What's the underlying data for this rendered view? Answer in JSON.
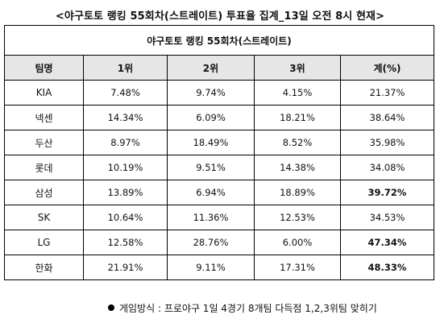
{
  "title": "<야구토토 랭킹 55회차(스트레이트) 투표율 집계_13일 오전 8시 현재>",
  "table": {
    "caption": "야구토토 랭킹 55회차(스트레이트)",
    "headers": [
      "팀명",
      "1위",
      "2위",
      "3위",
      "계(%)"
    ],
    "rows": [
      {
        "team": "KIA",
        "r1": "7.48%",
        "r2": "9.74%",
        "r3": "4.15%",
        "total": "21.37%",
        "total_bold": false
      },
      {
        "team": "넥센",
        "r1": "14.34%",
        "r2": "6.09%",
        "r3": "18.21%",
        "total": "38.64%",
        "total_bold": false
      },
      {
        "team": "두산",
        "r1": "8.97%",
        "r2": "18.49%",
        "r3": "8.52%",
        "total": "35.98%",
        "total_bold": false
      },
      {
        "team": "롯데",
        "r1": "10.19%",
        "r2": "9.51%",
        "r3": "14.38%",
        "total": "34.08%",
        "total_bold": false
      },
      {
        "team": "삼성",
        "r1": "13.89%",
        "r2": "6.94%",
        "r3": "18.89%",
        "total": "39.72%",
        "total_bold": true
      },
      {
        "team": "SK",
        "r1": "10.64%",
        "r2": "11.36%",
        "r3": "12.53%",
        "total": "34.53%",
        "total_bold": false
      },
      {
        "team": "LG",
        "r1": "12.58%",
        "r2": "28.76%",
        "r3": "6.00%",
        "total": "47.34%",
        "total_bold": true
      },
      {
        "team": "한화",
        "r1": "21.91%",
        "r2": "9.11%",
        "r3": "17.31%",
        "total": "48.33%",
        "total_bold": true
      }
    ]
  },
  "footnote": "게임방식 : 프로야구 1일 4경기 8개팀 다득점 1,2,3위팀 맞히기",
  "colors": {
    "header_bg": "#e6e6e6",
    "border": "#000000"
  }
}
